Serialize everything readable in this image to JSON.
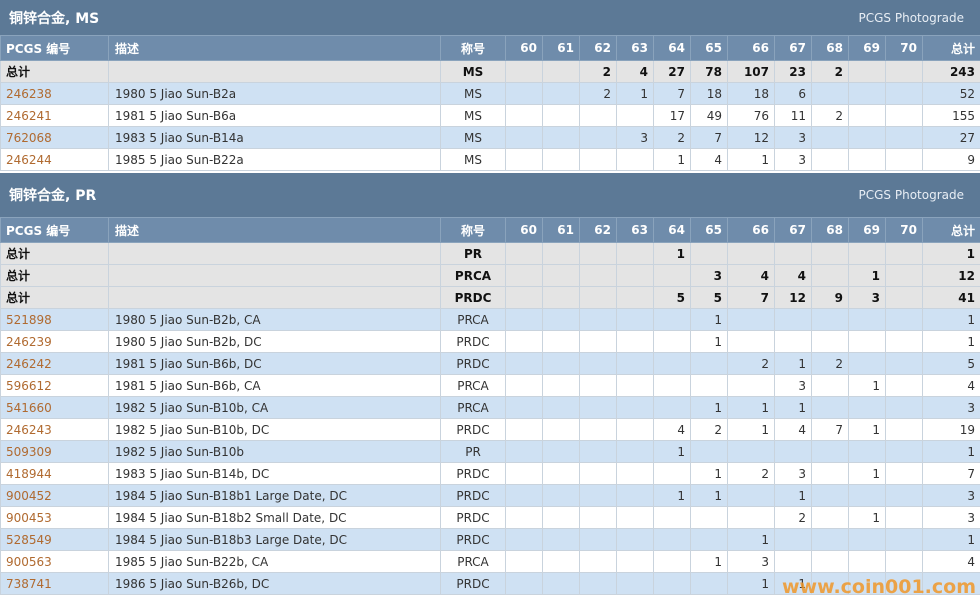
{
  "sections": [
    {
      "title": "铜锌合金, MS",
      "source": "PCGS Photograde",
      "columns": [
        "PCGS 编号",
        "描述",
        "称号",
        "60",
        "61",
        "62",
        "63",
        "64",
        "65",
        "66",
        "67",
        "68",
        "69",
        "70",
        "总计"
      ],
      "totals": [
        [
          "总计",
          null,
          "MS",
          null,
          null,
          2,
          4,
          27,
          78,
          107,
          23,
          2,
          null,
          null,
          243
        ]
      ],
      "rows": [
        [
          "246238",
          "1980 5 Jiao Sun-B2a",
          "MS",
          null,
          null,
          2,
          1,
          7,
          18,
          18,
          6,
          null,
          null,
          null,
          52
        ],
        [
          "246241",
          "1981 5 Jiao Sun-B6a",
          "MS",
          null,
          null,
          null,
          null,
          17,
          49,
          76,
          11,
          2,
          null,
          null,
          155
        ],
        [
          "762068",
          "1983 5 Jiao Sun-B14a",
          "MS",
          null,
          null,
          null,
          3,
          2,
          7,
          12,
          3,
          null,
          null,
          null,
          27
        ],
        [
          "246244",
          "1985 5 Jiao Sun-B22a",
          "MS",
          null,
          null,
          null,
          null,
          1,
          4,
          1,
          3,
          null,
          null,
          null,
          9
        ]
      ]
    },
    {
      "title": "铜锌合金, PR",
      "source": "PCGS Photograde",
      "columns": [
        "PCGS 编号",
        "描述",
        "称号",
        "60",
        "61",
        "62",
        "63",
        "64",
        "65",
        "66",
        "67",
        "68",
        "69",
        "70",
        "总计"
      ],
      "totals": [
        [
          "总计",
          null,
          "PR",
          null,
          null,
          null,
          null,
          1,
          null,
          null,
          null,
          null,
          null,
          null,
          1
        ],
        [
          "总计",
          null,
          "PRCA",
          null,
          null,
          null,
          null,
          null,
          3,
          4,
          4,
          null,
          1,
          null,
          12
        ],
        [
          "总计",
          null,
          "PRDC",
          null,
          null,
          null,
          null,
          5,
          5,
          7,
          12,
          9,
          3,
          null,
          41
        ]
      ],
      "rows": [
        [
          "521898",
          "1980 5 Jiao Sun-B2b, CA",
          "PRCA",
          null,
          null,
          null,
          null,
          null,
          1,
          null,
          null,
          null,
          null,
          null,
          1
        ],
        [
          "246239",
          "1980 5 Jiao Sun-B2b, DC",
          "PRDC",
          null,
          null,
          null,
          null,
          null,
          1,
          null,
          null,
          null,
          null,
          null,
          1
        ],
        [
          "246242",
          "1981 5 Jiao Sun-B6b, DC",
          "PRDC",
          null,
          null,
          null,
          null,
          null,
          null,
          2,
          1,
          2,
          null,
          null,
          5
        ],
        [
          "596612",
          "1981 5 Jiao Sun-B6b, CA",
          "PRCA",
          null,
          null,
          null,
          null,
          null,
          null,
          null,
          3,
          null,
          1,
          null,
          4
        ],
        [
          "541660",
          "1982 5 Jiao Sun-B10b, CA",
          "PRCA",
          null,
          null,
          null,
          null,
          null,
          1,
          1,
          1,
          null,
          null,
          null,
          3
        ],
        [
          "246243",
          "1982 5 Jiao Sun-B10b, DC",
          "PRDC",
          null,
          null,
          null,
          null,
          4,
          2,
          1,
          4,
          7,
          1,
          null,
          19
        ],
        [
          "509309",
          "1982 5 Jiao Sun-B10b",
          "PR",
          null,
          null,
          null,
          null,
          1,
          null,
          null,
          null,
          null,
          null,
          null,
          1
        ],
        [
          "418944",
          "1983 5 Jiao Sun-B14b, DC",
          "PRDC",
          null,
          null,
          null,
          null,
          null,
          1,
          2,
          3,
          null,
          1,
          null,
          7
        ],
        [
          "900452",
          "1984 5 Jiao Sun-B18b1 Large Date, DC",
          "PRDC",
          null,
          null,
          null,
          null,
          1,
          1,
          null,
          1,
          null,
          null,
          null,
          3
        ],
        [
          "900453",
          "1984 5 Jiao Sun-B18b2 Small Date, DC",
          "PRDC",
          null,
          null,
          null,
          null,
          null,
          null,
          null,
          2,
          null,
          1,
          null,
          3
        ],
        [
          "528549",
          "1984 5 Jiao Sun-B18b3 Large Date, DC",
          "PRDC",
          null,
          null,
          null,
          null,
          null,
          null,
          1,
          null,
          null,
          null,
          null,
          1
        ],
        [
          "900563",
          "1985 5 Jiao Sun-B22b, CA",
          "PRCA",
          null,
          null,
          null,
          null,
          null,
          1,
          3,
          null,
          null,
          null,
          null,
          4
        ],
        [
          "738741",
          "1986 5 Jiao Sun-B26b, DC",
          "PRDC",
          null,
          null,
          null,
          null,
          null,
          null,
          1,
          1,
          null,
          null,
          null,
          null
        ]
      ]
    }
  ],
  "watermark": "www.coin001.com"
}
